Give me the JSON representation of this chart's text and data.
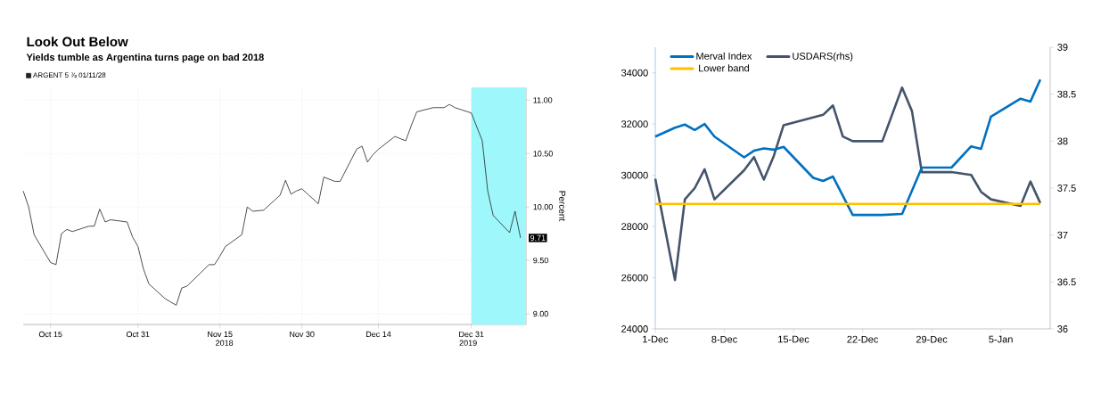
{
  "chart_data": [
    {
      "type": "line",
      "title": "Look Out Below",
      "subtitle": "Yields tumble as Argentina turns page on bad 2018",
      "ylabel": "Percent",
      "series": [
        {
          "name": "ARGENT 5 ⅞ 01/11/28",
          "color": "#222222",
          "x": [
            "2018-10-10",
            "2018-10-11",
            "2018-10-12",
            "2018-10-15",
            "2018-10-16",
            "2018-10-17",
            "2018-10-18",
            "2018-10-19",
            "2018-10-22",
            "2018-10-23",
            "2018-10-24",
            "2018-10-25",
            "2018-10-26",
            "2018-10-29",
            "2018-10-30",
            "2018-10-31",
            "2018-11-01",
            "2018-11-02",
            "2018-11-05",
            "2018-11-06",
            "2018-11-07",
            "2018-11-08",
            "2018-11-09",
            "2018-11-13",
            "2018-11-14",
            "2018-11-15",
            "2018-11-16",
            "2018-11-19",
            "2018-11-20",
            "2018-11-21",
            "2018-11-23",
            "2018-11-26",
            "2018-11-27",
            "2018-11-28",
            "2018-11-29",
            "2018-11-30",
            "2018-12-03",
            "2018-12-04",
            "2018-12-06",
            "2018-12-07",
            "2018-12-10",
            "2018-12-11",
            "2018-12-12",
            "2018-12-13",
            "2018-12-14",
            "2018-12-17",
            "2018-12-18",
            "2018-12-19",
            "2018-12-20",
            "2018-12-21",
            "2018-12-24",
            "2018-12-26",
            "2018-12-27",
            "2018-12-28",
            "2018-12-31",
            "2019-01-02",
            "2019-01-03",
            "2019-01-04",
            "2019-01-07",
            "2019-01-08",
            "2019-01-09"
          ],
          "values": [
            10.15,
            10.0,
            9.74,
            9.48,
            9.46,
            9.75,
            9.79,
            9.77,
            9.82,
            9.82,
            9.98,
            9.86,
            9.88,
            9.86,
            9.72,
            9.63,
            9.42,
            9.28,
            9.14,
            9.11,
            9.08,
            9.24,
            9.26,
            9.46,
            9.46,
            9.54,
            9.63,
            9.74,
            10.0,
            9.96,
            9.97,
            10.11,
            10.25,
            10.12,
            10.15,
            10.17,
            10.03,
            10.28,
            10.24,
            10.24,
            10.54,
            10.57,
            10.42,
            10.49,
            10.54,
            10.66,
            10.64,
            10.62,
            10.76,
            10.89,
            10.93,
            10.93,
            10.96,
            10.93,
            10.88,
            10.62,
            10.15,
            9.92,
            9.76,
            9.96,
            9.71
          ]
        }
      ],
      "xlim": [
        "2018-10-10",
        "2019-01-10"
      ],
      "xticks": [
        {
          "value": "2018-10-15",
          "label": "Oct 15"
        },
        {
          "value": "2018-10-31",
          "label": "Oct 31"
        },
        {
          "value": "2018-11-15",
          "label": "Nov 15"
        },
        {
          "value": "2018-11-30",
          "label": "Nov 30"
        },
        {
          "value": "2018-12-14",
          "label": "Dec 14"
        },
        {
          "value": "2018-12-31",
          "label": "Dec 31"
        }
      ],
      "ylim": [
        8.9,
        11.12
      ],
      "yticks": [
        {
          "value": 9,
          "label": "9.00"
        },
        {
          "value": 9.5,
          "label": "9.50"
        },
        {
          "value": 10,
          "label": "10.00"
        },
        {
          "value": 10.5,
          "label": "10.50"
        },
        {
          "value": 11,
          "label": "11.00"
        }
      ],
      "bands": [
        {
          "axis": "x",
          "from": "2018-12-31",
          "to": "2019-01-10",
          "color": "#9ef8fb"
        }
      ],
      "annotations": [
        "2018",
        "2019",
        {
          "text": "9.71",
          "x": "2019-01-09",
          "y": 9.71
        }
      ],
      "grid": true,
      "legend": "top left"
    },
    {
      "type": "line",
      "series": [
        {
          "name": "Merval Index",
          "color": "#0070c0",
          "x": [
            "2018-12-01",
            "2018-12-03",
            "2018-12-04",
            "2018-12-05",
            "2018-12-06",
            "2018-12-07",
            "2018-12-10",
            "2018-12-11",
            "2018-12-12",
            "2018-12-13",
            "2018-12-14",
            "2018-12-17",
            "2018-12-18",
            "2018-12-19",
            "2018-12-21",
            "2018-12-24",
            "2018-12-26",
            "2018-12-28",
            "2018-12-31",
            "2019-01-02",
            "2019-01-03",
            "2019-01-04",
            "2019-01-07",
            "2019-01-08",
            "2019-01-09"
          ],
          "values": [
            31510,
            31860,
            31980,
            31770,
            32000,
            31510,
            30700,
            30960,
            31050,
            31000,
            31110,
            29900,
            29780,
            29950,
            28450,
            28450,
            28490,
            30300,
            30300,
            31130,
            31030,
            32290,
            32990,
            32880,
            33740
          ]
        },
        {
          "name": "USDARS(rhs)",
          "color": "#44546a",
          "axis": "y2",
          "x": [
            "2018-12-01",
            "2018-12-03",
            "2018-12-04",
            "2018-12-05",
            "2018-12-06",
            "2018-12-07",
            "2018-12-10",
            "2018-12-11",
            "2018-12-12",
            "2018-12-13",
            "2018-12-14",
            "2018-12-18",
            "2018-12-19",
            "2018-12-20",
            "2018-12-21",
            "2018-12-24",
            "2018-12-26",
            "2018-12-27",
            "2018-12-28",
            "2018-12-31",
            "2019-01-02",
            "2019-01-03",
            "2019-01-04",
            "2019-01-07",
            "2019-01-08",
            "2019-01-09"
          ],
          "values": [
            37.6,
            36.52,
            37.38,
            37.5,
            37.7,
            37.38,
            37.69,
            37.83,
            37.59,
            37.84,
            38.17,
            38.28,
            38.38,
            38.05,
            38.0,
            38.0,
            38.57,
            38.32,
            37.67,
            37.67,
            37.64,
            37.46,
            37.38,
            37.31,
            37.57,
            37.34
          ]
        },
        {
          "name": "Lower band",
          "color": "#ffc000",
          "x": [
            "2018-12-01",
            "2019-01-09"
          ],
          "values": [
            28880,
            28880
          ]
        }
      ],
      "xlim": [
        "2018-12-01",
        "2019-01-10"
      ],
      "xticks": [
        {
          "value": "2018-12-01",
          "label": "1-Dec"
        },
        {
          "value": "2018-12-08",
          "label": "8-Dec"
        },
        {
          "value": "2018-12-15",
          "label": "15-Dec"
        },
        {
          "value": "2018-12-22",
          "label": "22-Dec"
        },
        {
          "value": "2018-12-29",
          "label": "29-Dec"
        },
        {
          "value": "2019-01-05",
          "label": "5-Jan"
        }
      ],
      "ylim": [
        24000,
        35000
      ],
      "yticks": [
        24000,
        26000,
        28000,
        30000,
        32000,
        34000
      ],
      "y2lim": [
        36,
        39
      ],
      "y2ticks": [
        36,
        36.5,
        37,
        37.5,
        38,
        38.5,
        39
      ],
      "grid": false,
      "legend": "top left"
    }
  ]
}
